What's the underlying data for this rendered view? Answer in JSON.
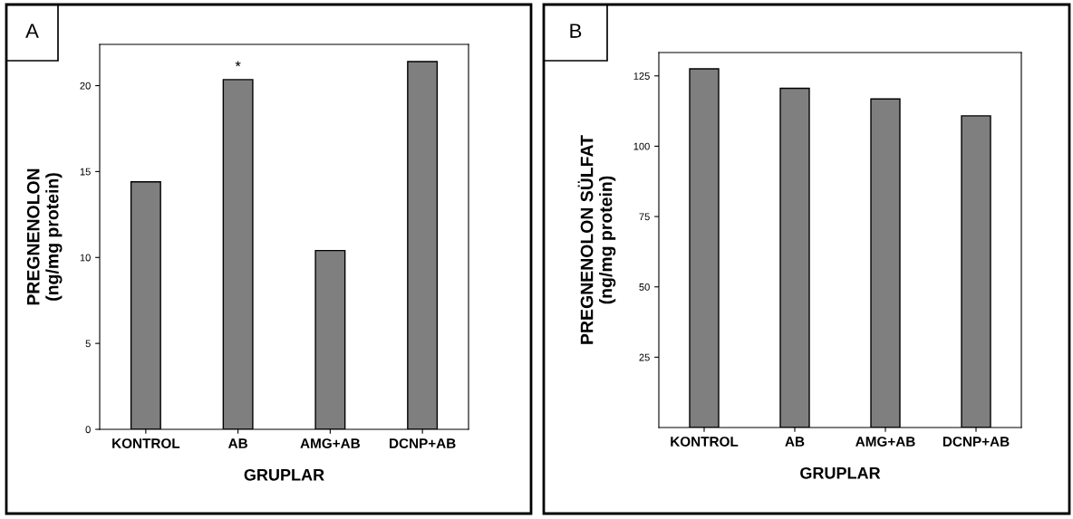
{
  "chart_data": [
    {
      "type": "bar",
      "categories": [
        "KONTROL",
        "AB",
        "AMG+AB",
        "DCNP+AB"
      ],
      "values": [
        14.4,
        20.35,
        10.4,
        21.4
      ],
      "color": "#7f7f7f",
      "xlabel": "GRUPLAR",
      "ylabel": "PREGNENOLON\n(ng/mg protein)",
      "ylim": [
        0,
        22.4
      ],
      "yticks": [
        0,
        5,
        10,
        15,
        20
      ],
      "grid": false,
      "legend": false,
      "annotations": [
        "A",
        {
          "text": "*",
          "x": "AB",
          "y": 20.35
        }
      ]
    },
    {
      "type": "bar",
      "categories": [
        "KONTROL",
        "AB",
        "AMG+AB",
        "DCNP+AB"
      ],
      "values": [
        127.5,
        120.6,
        116.8,
        110.8
      ],
      "color": "#7f7f7f",
      "xlabel": "GRUPLAR",
      "ylabel": "PREGNENOLON SÜLFAT\n(ng/mg protein)",
      "ylim": [
        0,
        133.3
      ],
      "yticks": [
        25,
        50,
        75,
        100,
        125
      ],
      "grid": false,
      "legend": false,
      "annotations": [
        "B"
      ]
    }
  ]
}
